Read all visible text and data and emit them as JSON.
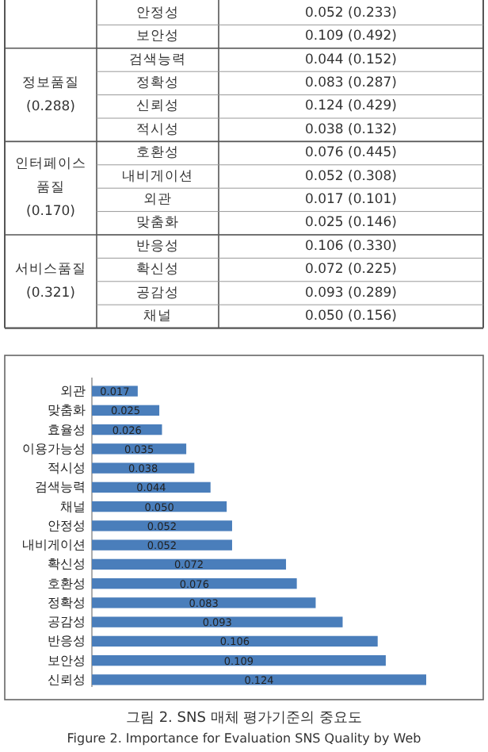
{
  "chart_data": [
    {
      "type": "other",
      "categories": [
        "안정성",
        "보안성",
        "검색능력",
        "정확성",
        "신뢰성",
        "적시성",
        "호환성",
        "내비게이션",
        "외관",
        "맞춤화",
        "반응성",
        "확신성",
        "공감성",
        "채널"
      ],
      "values": [
        0.052,
        0.109,
        0.044,
        0.083,
        0.124,
        0.038,
        0.076,
        0.052,
        0.017,
        0.025,
        0.106,
        0.072,
        0.093,
        0.05
      ],
      "value_labels": [
        "0.052 (0.233)",
        "0.109 (0.492)",
        "0.044 (0.152)",
        "0.083 (0.287)",
        "0.124 (0.429)",
        "0.038 (0.132)",
        "0.076 (0.445)",
        "0.052 (0.308)",
        "0.017 (0.101)",
        "0.025 (0.146)",
        "0.106 (0.330)",
        "0.072 (0.225)",
        "0.093 (0.289)",
        "0.050 (0.156)"
      ],
      "annotations": [
        "정보품질\n(0.288)",
        "인터페이스\n품질\n(0.170)",
        "서비스품질\n(0.321)"
      ]
    },
    {
      "type": "bar",
      "orientation": "horizontal",
      "title": "그림 2. SNS 매체 평가기준의 중요도",
      "subtitle": "Figure 2. Importance for Evaluation SNS Quality by Web",
      "categories": [
        "외관",
        "맞춤화",
        "효율성",
        "이용가능성",
        "적시성",
        "검색능력",
        "채널",
        "안정성",
        "내비게이션",
        "확신성",
        "호환성",
        "정확성",
        "공감성",
        "반응성",
        "보안성",
        "신뢰성"
      ],
      "values": [
        0.017,
        0.025,
        0.026,
        0.035,
        0.038,
        0.044,
        0.05,
        0.052,
        0.052,
        0.072,
        0.076,
        0.083,
        0.093,
        0.106,
        0.109,
        0.124
      ],
      "value_labels": [
        "0.017",
        "0.025",
        "0.026",
        "0.035",
        "0.038",
        "0.044",
        "0.050",
        "0.052",
        "0.052",
        "0.072",
        "0.076",
        "0.083",
        "0.093",
        "0.106",
        "0.109",
        "0.124"
      ],
      "color": "#4a7ebb"
    }
  ]
}
